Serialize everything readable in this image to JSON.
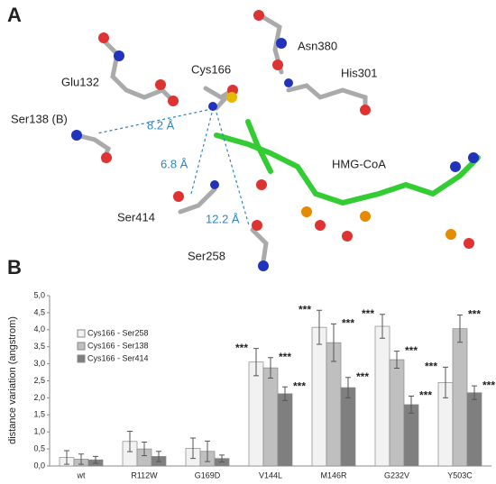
{
  "panel_a": {
    "label": "A",
    "residues": [
      "Glu132",
      "Cys166",
      "Asn380",
      "His301",
      "Ser138 (B)",
      "HMG-CoA",
      "Ser414",
      "Ser258"
    ],
    "distances": [
      "8.2 Å",
      "6.8 Å",
      "12.2 Å"
    ]
  },
  "chart_data": {
    "type": "bar",
    "panel_label": "B",
    "y_label": "distance variation (angstrom)",
    "categories": [
      "wt",
      "R112W",
      "G169D",
      "V144L",
      "M146R",
      "G232V",
      "Y503C"
    ],
    "series": [
      {
        "name": "Cys166 - Ser258",
        "color": "#f2f2f2",
        "values": [
          0.25,
          0.72,
          0.52,
          3.05,
          4.07,
          4.1,
          2.45
        ],
        "errors": [
          0.2,
          0.3,
          0.3,
          0.4,
          0.5,
          0.35,
          0.45
        ],
        "significance": [
          null,
          null,
          null,
          "***",
          "***",
          "***",
          "***"
        ]
      },
      {
        "name": "Cys166 - Ser138",
        "color": "#bfbfbf",
        "values": [
          0.2,
          0.5,
          0.43,
          2.88,
          3.62,
          3.12,
          4.03
        ],
        "errors": [
          0.15,
          0.2,
          0.3,
          0.3,
          0.55,
          0.25,
          0.4
        ],
        "significance": [
          null,
          null,
          null,
          "***",
          "***",
          "***",
          "***"
        ]
      },
      {
        "name": "Cys166 - Ser414",
        "color": "#7f7f7f",
        "values": [
          0.18,
          0.28,
          0.22,
          2.12,
          2.3,
          1.8,
          2.15
        ],
        "errors": [
          0.1,
          0.15,
          0.1,
          0.2,
          0.3,
          0.25,
          0.2
        ],
        "significance": [
          null,
          null,
          null,
          "***",
          "***",
          "***",
          "***"
        ]
      }
    ],
    "ylim": [
      0,
      5
    ],
    "yticks": [
      {
        "value": 0,
        "label": "0,0"
      },
      {
        "value": 0.5,
        "label": "0,5"
      },
      {
        "value": 1,
        "label": "1,0"
      },
      {
        "value": 1.5,
        "label": "1,5"
      },
      {
        "value": 2,
        "label": "2,0"
      },
      {
        "value": 2.5,
        "label": "2,5"
      },
      {
        "value": 3,
        "label": "3,0"
      },
      {
        "value": 3.5,
        "label": "3,5"
      },
      {
        "value": 4,
        "label": "4,0"
      },
      {
        "value": 4.5,
        "label": "4,5"
      },
      {
        "value": 5,
        "label": "5,0"
      }
    ],
    "grid": false,
    "legend": "top-left"
  }
}
